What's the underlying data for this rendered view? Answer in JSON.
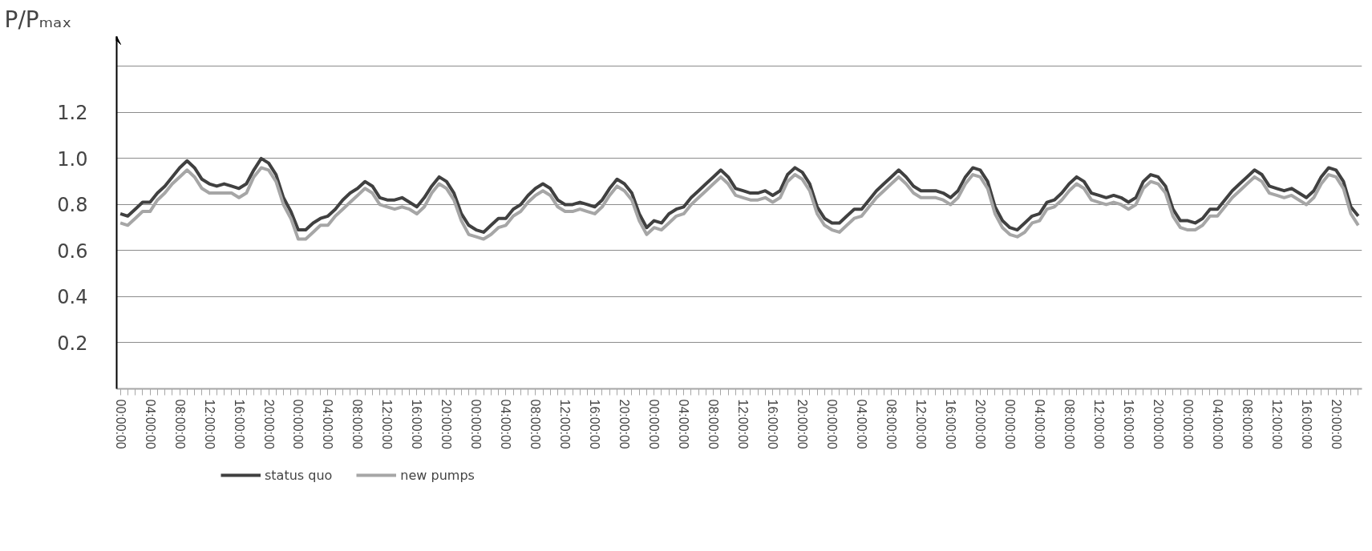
{
  "chart_data": {
    "type": "line",
    "ylabel": "P/Pₘₐₓ",
    "categories": [
      "00:00:00",
      null,
      null,
      null,
      "04:00:00",
      null,
      null,
      null,
      "08:00:00",
      null,
      null,
      null,
      "12:00:00",
      null,
      null,
      null,
      "16:00:00",
      null,
      null,
      null,
      "20:00:00",
      null,
      null,
      null,
      "00:00:00",
      null,
      null,
      null,
      "04:00:00",
      null,
      null,
      null,
      "08:00:00",
      null,
      null,
      null,
      "12:00:00",
      null,
      null,
      null,
      "16:00:00",
      null,
      null,
      null,
      "20:00:00",
      null,
      null,
      null,
      "00:00:00",
      null,
      null,
      null,
      "04:00:00",
      null,
      null,
      null,
      "08:00:00",
      null,
      null,
      null,
      "12:00:00",
      null,
      null,
      null,
      "16:00:00",
      null,
      null,
      null,
      "20:00:00",
      null,
      null,
      null,
      "00:00:00",
      null,
      null,
      null,
      "04:00:00",
      null,
      null,
      null,
      "08:00:00",
      null,
      null,
      null,
      "12:00:00",
      null,
      null,
      null,
      "16:00:00",
      null,
      null,
      null,
      "20:00:00",
      null,
      null,
      null,
      "00:00:00",
      null,
      null,
      null,
      "04:00:00",
      null,
      null,
      null,
      "08:00:00",
      null,
      null,
      null,
      "12:00:00",
      null,
      null,
      null,
      "16:00:00",
      null,
      null,
      null,
      "20:00:00",
      null,
      null,
      null,
      "00:00:00",
      null,
      null,
      null,
      "04:00:00",
      null,
      null,
      null,
      "08:00:00",
      null,
      null,
      null,
      "12:00:00",
      null,
      null,
      null,
      "16:00:00",
      null,
      null,
      null,
      "20:00:00",
      null,
      null,
      null,
      "00:00:00",
      null,
      null,
      null,
      "04:00:00",
      null,
      null,
      null,
      "08:00:00",
      null,
      null,
      null,
      "12:00:00",
      null,
      null,
      null,
      "16:00:00",
      null,
      null,
      null,
      "20:00:00",
      null,
      null,
      null
    ],
    "series": [
      {
        "name": "status quo",
        "color": "#404040",
        "values": [
          0.76,
          0.75,
          0.78,
          0.81,
          0.81,
          0.85,
          0.88,
          0.92,
          0.96,
          0.99,
          0.96,
          0.91,
          0.89,
          0.88,
          0.89,
          0.88,
          0.87,
          0.89,
          0.95,
          1.0,
          0.98,
          0.93,
          0.83,
          0.77,
          0.69,
          0.69,
          0.72,
          0.74,
          0.75,
          0.78,
          0.82,
          0.85,
          0.87,
          0.9,
          0.88,
          0.83,
          0.82,
          0.82,
          0.83,
          0.81,
          0.79,
          0.83,
          0.88,
          0.92,
          0.9,
          0.85,
          0.76,
          0.71,
          0.69,
          0.68,
          0.71,
          0.74,
          0.74,
          0.78,
          0.8,
          0.84,
          0.87,
          0.89,
          0.87,
          0.82,
          0.8,
          0.8,
          0.81,
          0.8,
          0.79,
          0.82,
          0.87,
          0.91,
          0.89,
          0.85,
          0.76,
          0.7,
          0.73,
          0.72,
          0.76,
          0.78,
          0.79,
          0.83,
          0.86,
          0.89,
          0.92,
          0.95,
          0.92,
          0.87,
          0.86,
          0.85,
          0.85,
          0.86,
          0.84,
          0.86,
          0.93,
          0.96,
          0.94,
          0.89,
          0.79,
          0.74,
          0.72,
          0.72,
          0.75,
          0.78,
          0.78,
          0.82,
          0.86,
          0.89,
          0.92,
          0.95,
          0.92,
          0.88,
          0.86,
          0.86,
          0.86,
          0.85,
          0.83,
          0.86,
          0.92,
          0.96,
          0.95,
          0.9,
          0.79,
          0.73,
          0.7,
          0.69,
          0.72,
          0.75,
          0.76,
          0.81,
          0.82,
          0.85,
          0.89,
          0.92,
          0.9,
          0.85,
          0.84,
          0.83,
          0.84,
          0.83,
          0.81,
          0.83,
          0.9,
          0.93,
          0.92,
          0.88,
          0.78,
          0.73,
          0.73,
          0.72,
          0.74,
          0.78,
          0.78,
          0.82,
          0.86,
          0.89,
          0.92,
          0.95,
          0.93,
          0.88,
          0.87,
          0.86,
          0.87,
          0.85,
          0.83,
          0.86,
          0.92,
          0.96,
          0.95,
          0.9,
          0.79,
          0.75
        ]
      },
      {
        "name": "new pumps",
        "color": "#a6a6a6",
        "values": [
          0.72,
          0.71,
          0.74,
          0.77,
          0.77,
          0.82,
          0.85,
          0.89,
          0.92,
          0.95,
          0.92,
          0.87,
          0.85,
          0.85,
          0.85,
          0.85,
          0.83,
          0.85,
          0.92,
          0.96,
          0.95,
          0.9,
          0.8,
          0.74,
          0.65,
          0.65,
          0.68,
          0.71,
          0.71,
          0.75,
          0.78,
          0.81,
          0.84,
          0.87,
          0.85,
          0.8,
          0.79,
          0.78,
          0.79,
          0.78,
          0.76,
          0.79,
          0.85,
          0.89,
          0.87,
          0.82,
          0.73,
          0.67,
          0.66,
          0.65,
          0.67,
          0.7,
          0.71,
          0.75,
          0.77,
          0.81,
          0.84,
          0.86,
          0.84,
          0.79,
          0.77,
          0.77,
          0.78,
          0.77,
          0.76,
          0.79,
          0.84,
          0.88,
          0.86,
          0.82,
          0.73,
          0.67,
          0.7,
          0.69,
          0.72,
          0.75,
          0.76,
          0.8,
          0.83,
          0.86,
          0.89,
          0.92,
          0.89,
          0.84,
          0.83,
          0.82,
          0.82,
          0.83,
          0.81,
          0.83,
          0.9,
          0.93,
          0.91,
          0.86,
          0.76,
          0.71,
          0.69,
          0.68,
          0.71,
          0.74,
          0.75,
          0.79,
          0.83,
          0.86,
          0.89,
          0.92,
          0.89,
          0.85,
          0.83,
          0.83,
          0.83,
          0.82,
          0.8,
          0.83,
          0.89,
          0.93,
          0.92,
          0.87,
          0.76,
          0.7,
          0.67,
          0.66,
          0.68,
          0.72,
          0.73,
          0.78,
          0.79,
          0.82,
          0.86,
          0.89,
          0.87,
          0.82,
          0.81,
          0.8,
          0.81,
          0.8,
          0.78,
          0.8,
          0.87,
          0.9,
          0.89,
          0.85,
          0.75,
          0.7,
          0.69,
          0.69,
          0.71,
          0.75,
          0.75,
          0.79,
          0.83,
          0.86,
          0.89,
          0.92,
          0.9,
          0.85,
          0.84,
          0.83,
          0.84,
          0.82,
          0.8,
          0.83,
          0.89,
          0.93,
          0.92,
          0.87,
          0.76,
          0.71
        ]
      }
    ],
    "ylim": [
      0,
      1.53
    ],
    "yticks": [
      0.2,
      0.4,
      0.6,
      0.8,
      {
        "value": 1.0,
        "label": "1.0"
      },
      1.2,
      {
        "value": 1.4,
        "label": null
      }
    ],
    "grid": "y",
    "legend": "bottom",
    "line_style": "solid"
  }
}
